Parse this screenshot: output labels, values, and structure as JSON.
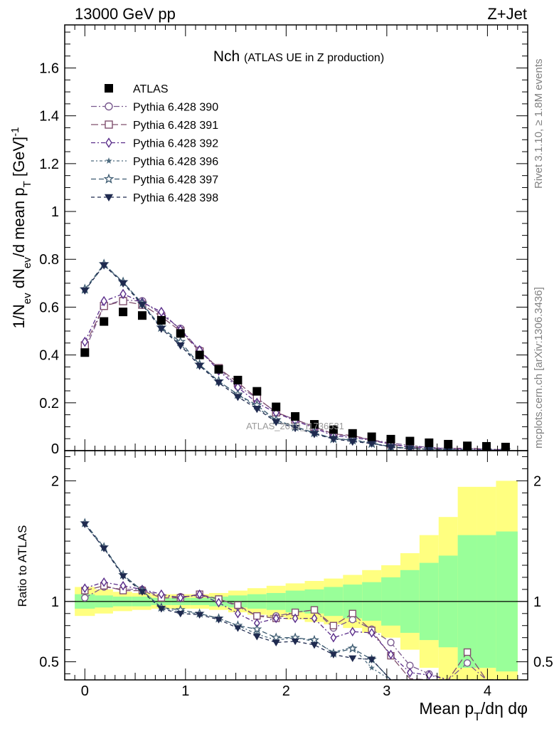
{
  "header": {
    "left_label": "13000 GeV pp",
    "right_label": "Z+Jet"
  },
  "side": {
    "rivet_label": "Rivet 3.1.10, ≥ 1.8M events",
    "source_label": "mcplots.cern.ch [arXiv:1306.3436]"
  },
  "chart_data": {
    "type": "line",
    "title_main": "Nch",
    "title_sub": "(ATLAS UE in Z production)",
    "watermark": "ATLAS_2019_I1736531",
    "xlabel": "Mean p_T/dη dφ",
    "ylabel_top": "1/N_ev dN_ev/d mean p_T [GeV]^-1",
    "ylabel_bottom": "Ratio to ATLAS",
    "xlim": [
      -0.2,
      4.4
    ],
    "ylim_top": [
      0,
      1.78
    ],
    "ylim_bottom": [
      0.35,
      2.25
    ],
    "xticks": [
      0,
      1,
      2,
      3,
      4
    ],
    "yticks_top": [
      0.2,
      0.4,
      0.6,
      0.8,
      1,
      1.2,
      1.4,
      1.6
    ],
    "yticks_bottom": [
      0.5,
      1,
      2
    ],
    "x": [
      0,
      0.19,
      0.38,
      0.57,
      0.76,
      0.95,
      1.14,
      1.33,
      1.52,
      1.71,
      1.9,
      2.09,
      2.28,
      2.47,
      2.66,
      2.85,
      3.04,
      3.23,
      3.42,
      3.61,
      3.8,
      3.99,
      4.18
    ],
    "bin_edges": [
      -0.1,
      0.1,
      0.28,
      0.47,
      0.66,
      0.855,
      1.045,
      1.235,
      1.425,
      1.615,
      1.805,
      1.995,
      2.185,
      2.375,
      2.565,
      2.755,
      2.945,
      3.135,
      3.325,
      3.515,
      3.705,
      3.895,
      4.085,
      4.3
    ],
    "band_inner": [
      0.06,
      0.05,
      0.04,
      0.04,
      0.03,
      0.03,
      0.03,
      0.04,
      0.05,
      0.06,
      0.07,
      0.09,
      0.1,
      0.12,
      0.14,
      0.16,
      0.2,
      0.26,
      0.32,
      0.38,
      0.55,
      0.55,
      0.58
    ],
    "band_outer": [
      0.12,
      0.1,
      0.08,
      0.07,
      0.06,
      0.06,
      0.06,
      0.07,
      0.09,
      0.11,
      0.13,
      0.15,
      0.17,
      0.19,
      0.22,
      0.26,
      0.3,
      0.4,
      0.55,
      0.7,
      0.95,
      0.95,
      1.0
    ],
    "series": [
      {
        "name": "ATLAS",
        "color": "#000000",
        "marker": "square-filled",
        "dash": "none",
        "values": [
          0.41,
          0.54,
          0.58,
          0.565,
          0.545,
          0.49,
          0.4,
          0.34,
          0.295,
          0.248,
          0.183,
          0.143,
          0.11,
          0.088,
          0.072,
          0.058,
          0.048,
          0.04,
          0.033,
          0.027,
          0.02,
          0.018,
          0.015
        ]
      },
      {
        "name": "Pythia 6.428 390",
        "color": "#7a5a8f",
        "marker": "circle-open",
        "dash": "8,3,2,3",
        "values": [
          0.42,
          0.605,
          0.63,
          0.625,
          0.57,
          0.51,
          0.42,
          0.345,
          0.27,
          0.22,
          0.16,
          0.13,
          0.1,
          0.068,
          0.06,
          0.045,
          0.032,
          0.022,
          0.013,
          0.009,
          0.009,
          0.006,
          0.004
        ]
      },
      {
        "name": "Pythia 6.428 391",
        "color": "#80506e",
        "marker": "square-open",
        "dash": "10,4",
        "values": [
          0.44,
          0.605,
          0.625,
          0.61,
          0.56,
          0.5,
          0.415,
          0.345,
          0.285,
          0.22,
          0.16,
          0.13,
          0.1,
          0.07,
          0.063,
          0.045,
          0.027,
          0.014,
          0.011,
          0.008,
          0.011,
          0.006,
          0.004
        ]
      },
      {
        "name": "Pythia 6.428 392",
        "color": "#5a2d8a",
        "marker": "diamond-open",
        "dash": "6,3,2,3",
        "values": [
          0.455,
          0.625,
          0.655,
          0.62,
          0.58,
          0.505,
          0.42,
          0.335,
          0.265,
          0.2,
          0.158,
          0.125,
          0.095,
          0.062,
          0.055,
          0.043,
          0.027,
          0.016,
          0.013,
          0.008,
          0.006,
          0.005,
          0.003
        ]
      },
      {
        "name": "Pythia 6.428 396",
        "color": "#4d6b7f",
        "marker": "star-small",
        "dash": "4,3,2,3",
        "values": [
          0.67,
          0.775,
          0.705,
          0.615,
          0.515,
          0.445,
          0.36,
          0.29,
          0.235,
          0.18,
          0.125,
          0.1,
          0.073,
          0.051,
          0.045,
          0.033,
          0.016,
          0.009,
          0.006,
          0.004,
          0.003,
          0.002,
          0.002
        ]
      },
      {
        "name": "Pythia 6.428 397",
        "color": "#3c5a70",
        "marker": "star-open",
        "dash": "7,4",
        "values": [
          0.675,
          0.78,
          0.705,
          0.615,
          0.515,
          0.455,
          0.36,
          0.29,
          0.235,
          0.19,
          0.128,
          0.1,
          0.075,
          0.05,
          0.044,
          0.03,
          0.017,
          0.009,
          0.006,
          0.004,
          0.003,
          0.002,
          0.002
        ]
      },
      {
        "name": "Pythia 6.428 398",
        "color": "#1f2a4f",
        "marker": "triangle-down-filled",
        "dash": "5,4",
        "values": [
          0.67,
          0.775,
          0.7,
          0.61,
          0.51,
          0.44,
          0.355,
          0.285,
          0.225,
          0.175,
          0.12,
          0.095,
          0.07,
          0.049,
          0.038,
          0.03,
          0.015,
          0.008,
          0.005,
          0.003,
          0.002,
          0.001,
          0.001
        ]
      }
    ],
    "ratios": [
      [
        1,
        1,
        1,
        1,
        1,
        1,
        1,
        1,
        1,
        1,
        1,
        1,
        1,
        1,
        1,
        1,
        1,
        1,
        1,
        1,
        1,
        1,
        1
      ],
      [
        1.03,
        1.12,
        1.1,
        1.1,
        1.04,
        1.04,
        1.05,
        1.02,
        0.96,
        0.88,
        0.88,
        0.91,
        0.93,
        0.78,
        0.85,
        0.77,
        0.66,
        0.47,
        0.4,
        0.35,
        0.49,
        0.35,
        0.35
      ],
      [
        1.09,
        1.13,
        1.09,
        1.09,
        1.03,
        1.03,
        1.06,
        1.02,
        0.97,
        0.88,
        0.86,
        0.91,
        0.93,
        0.8,
        0.9,
        0.76,
        0.55,
        0.36,
        0.35,
        0.35,
        0.58,
        0.35,
        0.35
      ],
      [
        1.11,
        1.16,
        1.13,
        1.1,
        1.06,
        1.03,
        1.06,
        0.99,
        0.9,
        0.82,
        0.86,
        0.86,
        0.86,
        0.7,
        0.75,
        0.74,
        0.56,
        0.41,
        0.39,
        0.35,
        0.35,
        0.35,
        0.35
      ],
      [
        1.64,
        1.44,
        1.22,
        1.09,
        0.95,
        0.91,
        0.9,
        0.86,
        0.8,
        0.73,
        0.68,
        0.7,
        0.67,
        0.58,
        0.62,
        0.45,
        0.35,
        0.35,
        0.35,
        0.35,
        0.35,
        0.35,
        0.35
      ],
      [
        1.65,
        1.45,
        1.22,
        1.09,
        0.95,
        0.93,
        0.9,
        0.86,
        0.8,
        0.77,
        0.7,
        0.7,
        0.68,
        0.57,
        0.61,
        0.52,
        0.35,
        0.35,
        0.35,
        0.35,
        0.35,
        0.35,
        0.35
      ],
      [
        1.64,
        1.44,
        1.21,
        1.08,
        0.94,
        0.9,
        0.89,
        0.85,
        0.78,
        0.71,
        0.66,
        0.67,
        0.64,
        0.56,
        0.53,
        0.52,
        0.35,
        0.35,
        0.35,
        0.35,
        0.35,
        0.35,
        0.35
      ]
    ],
    "legend_position": "top-left",
    "grid": false
  }
}
